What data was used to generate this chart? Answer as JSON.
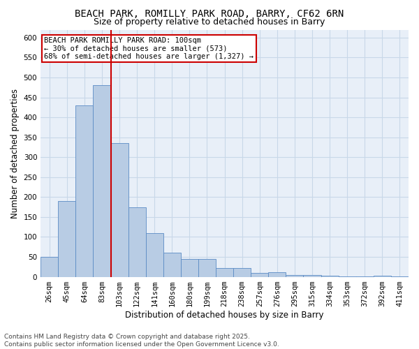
{
  "title_line1": "BEACH PARK, ROMILLY PARK ROAD, BARRY, CF62 6RN",
  "title_line2": "Size of property relative to detached houses in Barry",
  "xlabel": "Distribution of detached houses by size in Barry",
  "ylabel": "Number of detached properties",
  "categories": [
    "26sqm",
    "45sqm",
    "64sqm",
    "83sqm",
    "103sqm",
    "122sqm",
    "141sqm",
    "160sqm",
    "180sqm",
    "199sqm",
    "218sqm",
    "238sqm",
    "257sqm",
    "276sqm",
    "295sqm",
    "315sqm",
    "334sqm",
    "353sqm",
    "372sqm",
    "392sqm",
    "411sqm"
  ],
  "values": [
    50,
    190,
    430,
    480,
    335,
    175,
    110,
    60,
    45,
    45,
    22,
    22,
    10,
    12,
    5,
    5,
    3,
    1,
    1,
    2,
    1
  ],
  "bar_color": "#b8cce4",
  "bar_edgecolor": "#5b8bc5",
  "grid_color": "#c8d8e8",
  "background_color": "#e8eff8",
  "vline_color": "#cc0000",
  "annotation_text": "BEACH PARK ROMILLY PARK ROAD: 100sqm\n← 30% of detached houses are smaller (573)\n68% of semi-detached houses are larger (1,327) →",
  "ylim": [
    0,
    620
  ],
  "yticks": [
    0,
    50,
    100,
    150,
    200,
    250,
    300,
    350,
    400,
    450,
    500,
    550,
    600
  ],
  "footer_line1": "Contains HM Land Registry data © Crown copyright and database right 2025.",
  "footer_line2": "Contains public sector information licensed under the Open Government Licence v3.0.",
  "title_fontsize": 10,
  "subtitle_fontsize": 9,
  "axis_label_fontsize": 8.5,
  "tick_fontsize": 7.5,
  "annotation_fontsize": 7.5,
  "footer_fontsize": 6.5
}
